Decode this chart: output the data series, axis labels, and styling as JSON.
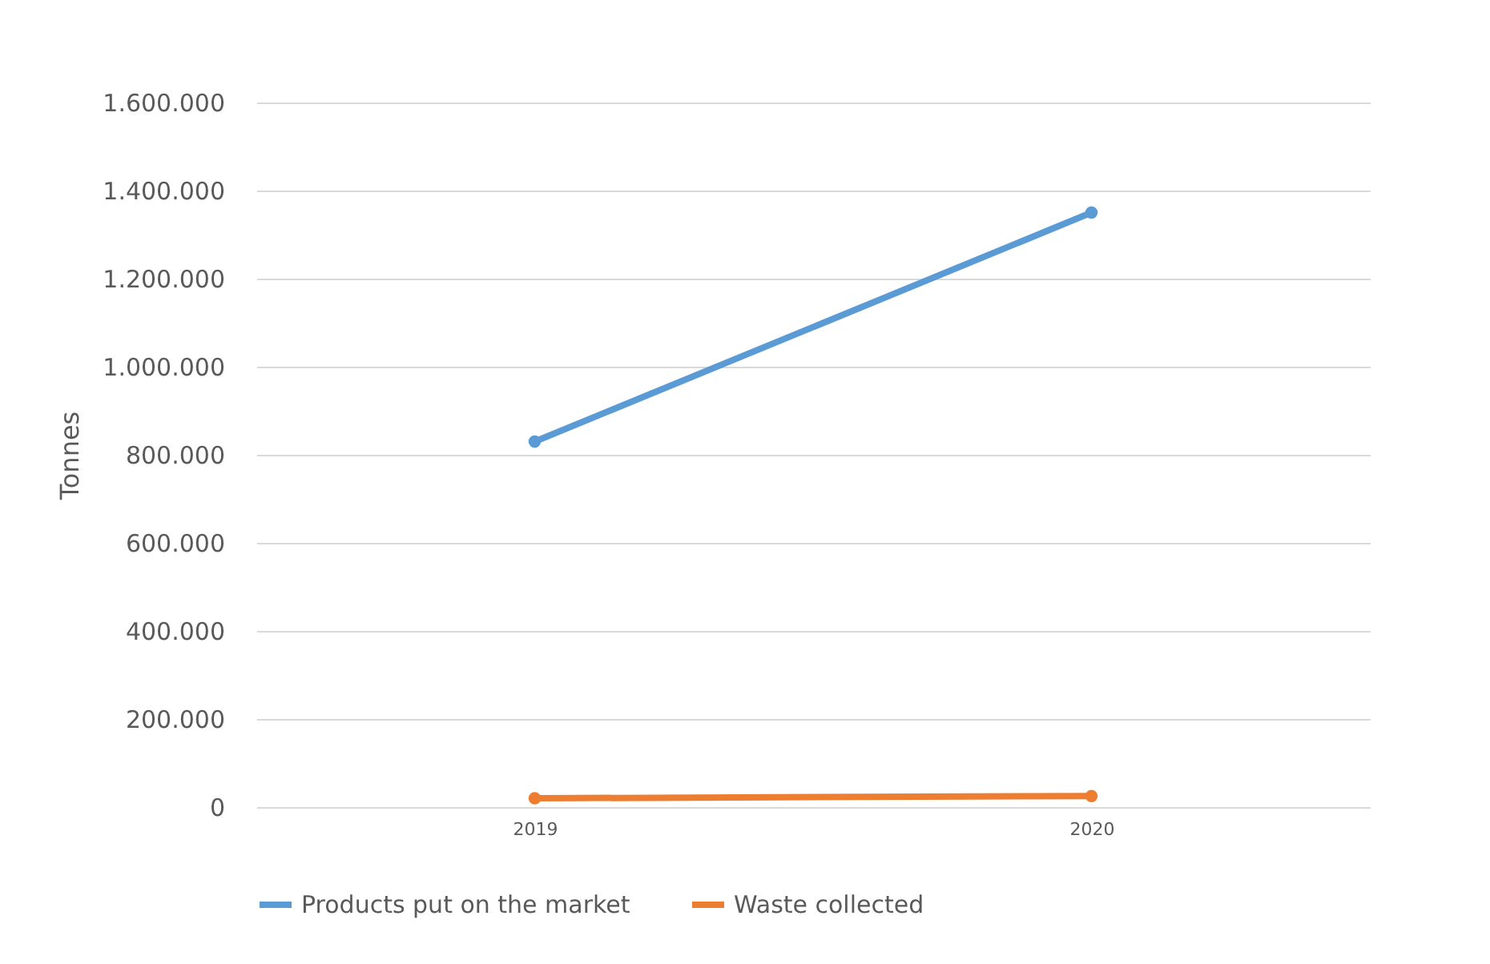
{
  "chart_data": {
    "type": "line",
    "ylabel": "Tonnes",
    "categories": [
      "2019",
      "2020"
    ],
    "series": [
      {
        "name": "Products put on the market",
        "color": "#5b9bd5",
        "values": [
          830000,
          1350000
        ]
      },
      {
        "name": "Waste collected",
        "color": "#ed7d31",
        "values": [
          20000,
          25000
        ]
      }
    ],
    "ylim": [
      0,
      1600000
    ],
    "yticks": [
      0,
      {
        "value": 200000,
        "label": "200.000"
      },
      {
        "value": 400000,
        "label": "400.000"
      },
      {
        "value": 600000,
        "label": "600.000"
      },
      {
        "value": 800000,
        "label": "800.000"
      },
      {
        "value": 1000000,
        "label": "1.000.000"
      },
      {
        "value": 1200000,
        "label": "1.200.000"
      },
      {
        "value": 1400000,
        "label": "1.400.000"
      },
      {
        "value": 1600000,
        "label": "1.600.000"
      }
    ],
    "grid": "y",
    "legend": "bottom",
    "marker": "circle",
    "line_style": "solid"
  }
}
